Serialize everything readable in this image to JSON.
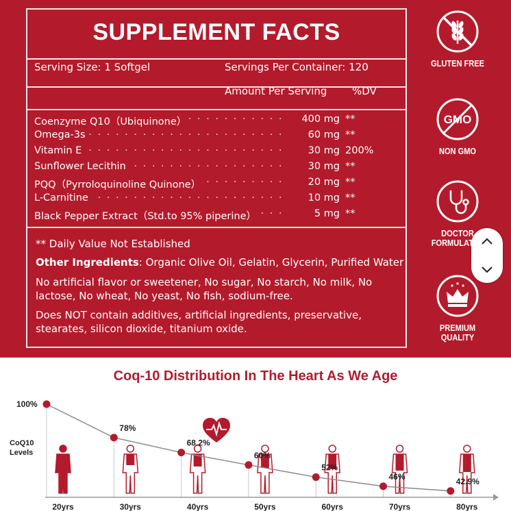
{
  "facts": {
    "title": "SUPPLEMENT FACTS",
    "serving_size": "Serving Size: 1 Softgel",
    "servings_per_container": "Servings Per Container: 120",
    "amount_header": "Amount Per Serving",
    "dv_header": "%DV",
    "nutrients": [
      {
        "name": "Coenzyme Q10（Ubiquinone）",
        "amount": "400 mg",
        "dv": "**"
      },
      {
        "name": "Omega-3s",
        "amount": "60 mg",
        "dv": "**"
      },
      {
        "name": "Vitamin E",
        "amount": "30 mg",
        "dv": "200%"
      },
      {
        "name": "Sunflower Lecithin",
        "amount": "30 mg",
        "dv": "**"
      },
      {
        "name": "PQQ（Pyrroloquinoline Quinone）",
        "amount": "20 mg",
        "dv": "**"
      },
      {
        "name": "L-Carnitine",
        "amount": "10 mg",
        "dv": "**"
      },
      {
        "name": "Black Pepper Extract（Std.to 95% piperine）",
        "amount": "5 mg",
        "dv": "**"
      }
    ],
    "note": "** Daily Value Not Established",
    "other_ingredients_label": "Other Ingredients",
    "other_ingredients_text": ": Organic Olive Oil, Gelatin, Glycerin, Purified Water",
    "free_from": "No artificial flavor or sweetener, No sugar, No starch, No milk, No lactose, No wheat, No yeast, No fish, sodium-free.",
    "no_additives": "Does NOT contain additives, artificial ingredients, preservative, stearates, silicon dioxide, titanium oxide."
  },
  "badges": [
    {
      "label": "GLUTEN FREE",
      "icon": "gluten-free-icon"
    },
    {
      "label": "NON GMO",
      "icon": "non-gmo-icon",
      "icon_text": "GMO"
    },
    {
      "label": "DOCTOR FORMULATED",
      "icon": "stethoscope-icon"
    },
    {
      "label": "PREMIUM QUALITY",
      "icon": "crown-icon"
    }
  ],
  "scroll_control": {
    "up": "chevron-up-icon",
    "down": "chevron-down-icon"
  },
  "colors": {
    "brand_red": "#b31b2c",
    "white": "#ffffff",
    "axis_gray": "#9a9a9a"
  },
  "chart_data": {
    "type": "line",
    "title": "Coq-10 Distribution In The Heart As We Age",
    "ylabel": "CoQ10 Levels",
    "categories": [
      "20yrs",
      "30yrs",
      "40yrs",
      "50yrs",
      "60yrs",
      "70yrs",
      "80yrs"
    ],
    "values": [
      100,
      78,
      68.2,
      60,
      52,
      46,
      42.9
    ],
    "value_labels": [
      "100%",
      "78%",
      "68.2%",
      "60%",
      "52%",
      "46%",
      "42.9%"
    ],
    "ylim": [
      0,
      100
    ]
  }
}
